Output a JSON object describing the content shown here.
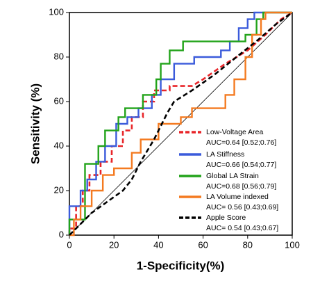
{
  "chart_data": {
    "type": "line",
    "x_label": "1-Specificity(%)",
    "y_label": "Sensitivity (%)",
    "xlim": [
      0,
      100
    ],
    "ylim": [
      0,
      100
    ],
    "xticks": [
      0,
      20,
      40,
      60,
      80,
      100
    ],
    "yticks": [
      0,
      20,
      40,
      60,
      80,
      100
    ],
    "reference_line_color": "#000000",
    "series": [
      {
        "name": "Low-Voltage Area",
        "annotation": "AUC=0.64 [0.52;0.76]",
        "color": "#e8262a",
        "dashed": true,
        "x": [
          0,
          0,
          3,
          3,
          6,
          6,
          9,
          9,
          14,
          14,
          19,
          19,
          24,
          24,
          28,
          28,
          33,
          33,
          38,
          38,
          45,
          45,
          55,
          60,
          70,
          80,
          88,
          95,
          100
        ],
        "values": [
          0,
          3,
          3,
          13,
          13,
          20,
          20,
          27,
          27,
          33,
          33,
          40,
          40,
          47,
          47,
          53,
          53,
          60,
          60,
          65,
          65,
          67,
          67,
          70,
          77,
          83,
          90,
          97,
          100
        ]
      },
      {
        "name": "LA Stiffness",
        "annotation": "AUC=0.66 [0.54;0.77]",
        "color": "#3b5bdb",
        "dashed": false,
        "x": [
          0,
          0,
          5,
          5,
          8,
          8,
          12,
          12,
          16,
          16,
          21,
          21,
          26,
          26,
          31,
          31,
          37,
          37,
          41,
          41,
          47,
          47,
          56,
          56,
          68,
          68,
          72,
          72,
          76,
          76,
          80,
          80,
          83,
          83,
          100
        ],
        "values": [
          0,
          13,
          13,
          20,
          20,
          25,
          25,
          33,
          33,
          40,
          40,
          50,
          50,
          53,
          53,
          57,
          57,
          63,
          63,
          70,
          70,
          77,
          77,
          80,
          80,
          83,
          83,
          87,
          87,
          93,
          93,
          97,
          97,
          100,
          100
        ]
      },
      {
        "name": "Global LA Strain",
        "annotation": "AUC=0.68 [0.56;0.79]",
        "color": "#22a31a",
        "dashed": false,
        "x": [
          0,
          0,
          7,
          7,
          13,
          13,
          16,
          16,
          22,
          22,
          25,
          25,
          33,
          33,
          39,
          39,
          41,
          41,
          45,
          45,
          51,
          51,
          79,
          79,
          84,
          84,
          87,
          87,
          100
        ],
        "values": [
          0,
          7,
          7,
          32,
          32,
          40,
          40,
          47,
          47,
          53,
          53,
          57,
          57,
          63,
          63,
          70,
          70,
          77,
          77,
          83,
          83,
          87,
          87,
          90,
          90,
          97,
          97,
          100,
          100
        ]
      },
      {
        "name": "LA Volume indexed",
        "annotation": "AUC= 0.56 [0.43;0.69]",
        "color": "#f47a20",
        "dashed": false,
        "x": [
          0,
          2,
          2,
          5,
          5,
          10,
          10,
          15,
          15,
          20,
          20,
          28,
          28,
          32,
          32,
          40,
          40,
          50,
          50,
          55,
          55,
          70,
          70,
          74,
          74,
          79,
          79,
          82,
          82,
          86,
          86,
          88,
          88,
          100
        ],
        "values": [
          0,
          0,
          7,
          7,
          13,
          13,
          20,
          20,
          27,
          27,
          30,
          30,
          37,
          37,
          43,
          43,
          50,
          50,
          53,
          53,
          57,
          57,
          63,
          63,
          70,
          70,
          80,
          80,
          90,
          90,
          97,
          97,
          100,
          100
        ]
      },
      {
        "name": "Apple Score",
        "annotation": "AUC= 0.54 [0.43;0.67]",
        "color": "#000000",
        "dashed": true,
        "x": [
          0,
          5,
          10,
          17,
          24,
          28,
          32,
          38,
          44,
          47,
          55,
          65,
          75,
          85,
          93,
          100
        ],
        "values": [
          0,
          5,
          10,
          15,
          20,
          25,
          33,
          43,
          55,
          60,
          65,
          72,
          80,
          88,
          95,
          100
        ]
      }
    ]
  }
}
